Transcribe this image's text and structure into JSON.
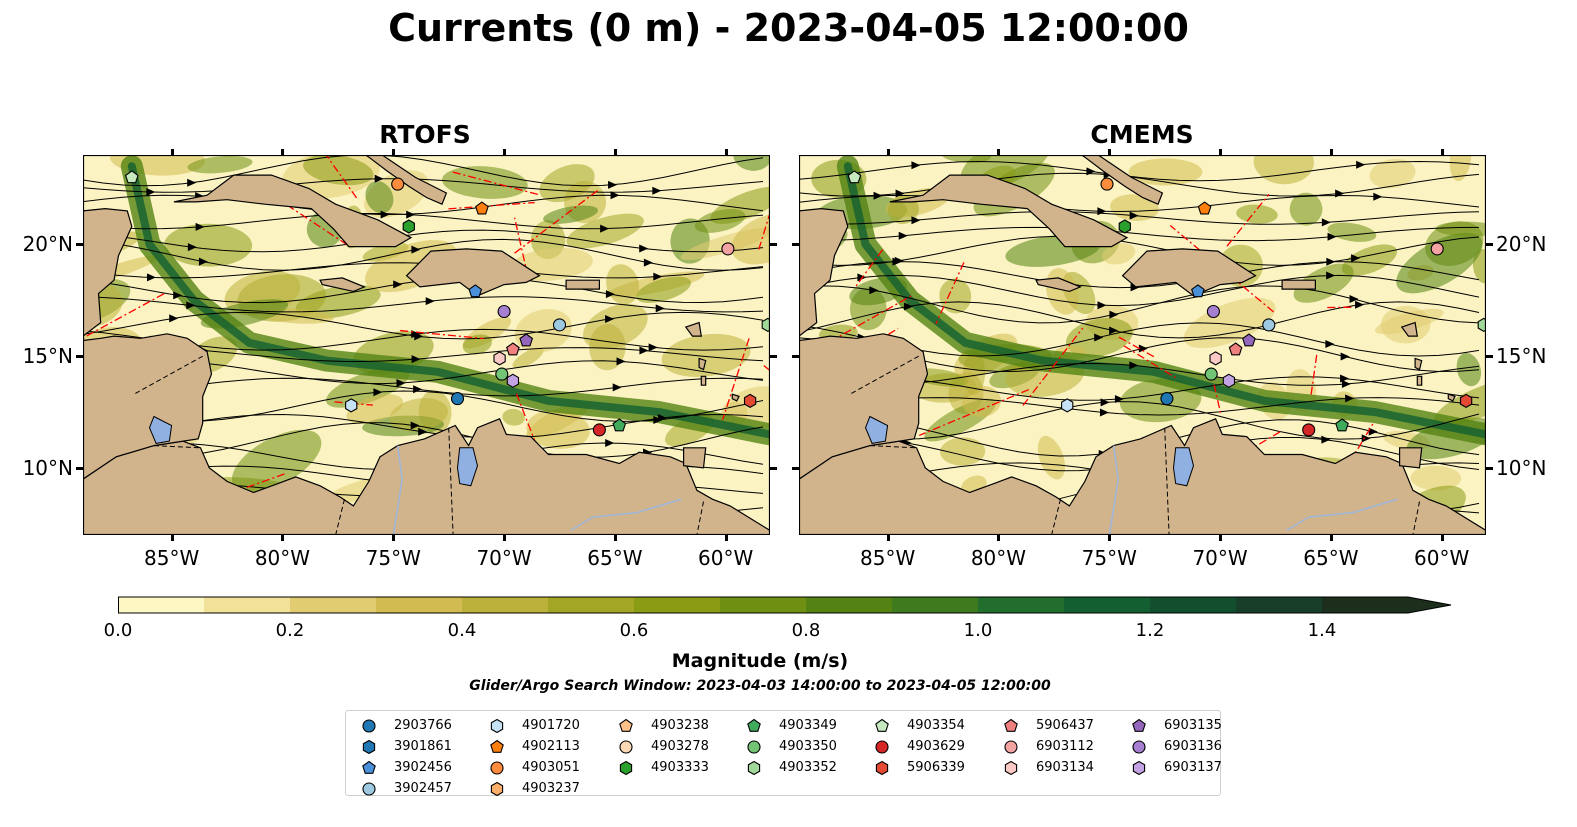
{
  "title": "Currents (0 m) - 2023-04-05 12:00:00",
  "panels": [
    {
      "title": "RTOFS",
      "seed": 7
    },
    {
      "title": "CMEMS",
      "seed": 19
    }
  ],
  "map": {
    "lon_range": [
      -89.0,
      -58.0
    ],
    "lat_range": [
      7.0,
      24.0
    ],
    "x_ticks": [
      "85°W",
      "80°W",
      "75°W",
      "70°W",
      "65°W",
      "60°W"
    ],
    "x_tick_values": [
      -85,
      -80,
      -75,
      -70,
      -65,
      -60
    ],
    "y_ticks": [
      "20°N",
      "15°N",
      "10°N"
    ],
    "y_tick_values": [
      20,
      15,
      10
    ],
    "colors": {
      "land": "#d2b48c",
      "ocean_low": "#fbf3c2",
      "ocean_high": "#1a3318",
      "eez_lines": "#ff0000",
      "streamlines": "#000000",
      "borders": "#000000",
      "rivers_lakes": "#9fb6d8"
    }
  },
  "colorbar": {
    "label": "Magnitude (m/s)",
    "min": 0.0,
    "max": 1.5,
    "step": 0.1,
    "extend": "max",
    "ticks": [
      "0.0",
      "0.2",
      "0.4",
      "0.6",
      "0.8",
      "1.0",
      "1.2",
      "1.4"
    ],
    "colors": [
      "#fdf7c4",
      "#f1e199",
      "#e2cc72",
      "#d2bb50",
      "#bcb13a",
      "#a3a524",
      "#8a9b14",
      "#6f8f12",
      "#548313",
      "#3e7a1e",
      "#226e2e",
      "#135f31",
      "#114f2f",
      "#173e28",
      "#1c2f1d"
    ]
  },
  "search_window": "Glider/Argo Search Window: 2023-04-03 14:00:00 to 2023-04-05 12:00:00",
  "legend": [
    {
      "id": "2903766",
      "marker": "circle",
      "color": "#1f77b4",
      "lon": -72.1,
      "lat": 13.1
    },
    {
      "id": "3901861",
      "marker": "hexagon",
      "color": "#1f77b4",
      "lon": null,
      "lat": null
    },
    {
      "id": "3902456",
      "marker": "pentagon",
      "color": "#4a90d9",
      "lon": -71.3,
      "lat": 17.9
    },
    {
      "id": "3902457",
      "marker": "circle",
      "color": "#9ecae1",
      "lon": -67.5,
      "lat": 16.4
    },
    {
      "id": "4901720",
      "marker": "hexagon",
      "color": "#c6e2f5",
      "lon": -76.9,
      "lat": 12.8
    },
    {
      "id": "4902113",
      "marker": "pentagon",
      "color": "#ff7f0e",
      "lon": -71.0,
      "lat": 21.6
    },
    {
      "id": "4903051",
      "marker": "circle",
      "color": "#fd8d3c",
      "lon": -74.8,
      "lat": 22.7
    },
    {
      "id": "4903237",
      "marker": "hexagon",
      "color": "#fdae6b",
      "lon": null,
      "lat": null
    },
    {
      "id": "4903238",
      "marker": "pentagon",
      "color": "#fdc089",
      "lon": null,
      "lat": null
    },
    {
      "id": "4903278",
      "marker": "circle",
      "color": "#fdd9b5",
      "lon": null,
      "lat": null
    },
    {
      "id": "4903333",
      "marker": "hexagon",
      "color": "#2ca02c",
      "lon": -74.3,
      "lat": 20.8
    },
    {
      "id": "4903349",
      "marker": "pentagon",
      "color": "#41ab5d",
      "lon": -64.8,
      "lat": 11.9
    },
    {
      "id": "4903350",
      "marker": "circle",
      "color": "#74c476",
      "lon": -70.1,
      "lat": 14.2
    },
    {
      "id": "4903352",
      "marker": "hexagon",
      "color": "#a1d99b",
      "lon": -58.1,
      "lat": 16.4
    },
    {
      "id": "4903354",
      "marker": "pentagon",
      "color": "#c7e9c0",
      "lon": -86.8,
      "lat": 23.0
    },
    {
      "id": "4903629",
      "marker": "circle",
      "color": "#d62728",
      "lon": -65.7,
      "lat": 11.7
    },
    {
      "id": "5906339",
      "marker": "hexagon",
      "color": "#e34a33",
      "lon": -58.9,
      "lat": 13.0
    },
    {
      "id": "5906437",
      "marker": "pentagon",
      "color": "#f07f7f",
      "lon": -69.6,
      "lat": 15.3
    },
    {
      "id": "6903112",
      "marker": "circle",
      "color": "#f4a3a3",
      "lon": -59.9,
      "lat": 19.8
    },
    {
      "id": "6903134",
      "marker": "hexagon",
      "color": "#fbc9c6",
      "lon": -70.2,
      "lat": 14.9
    },
    {
      "id": "6903135",
      "marker": "pentagon",
      "color": "#9467bd",
      "lon": -69.0,
      "lat": 15.7
    },
    {
      "id": "6903136",
      "marker": "circle",
      "color": "#a77fd0",
      "lon": -70.0,
      "lat": 17.0
    },
    {
      "id": "6903137",
      "marker": "hexagon",
      "color": "#c3a3e3",
      "lon": -69.6,
      "lat": 13.9
    }
  ]
}
